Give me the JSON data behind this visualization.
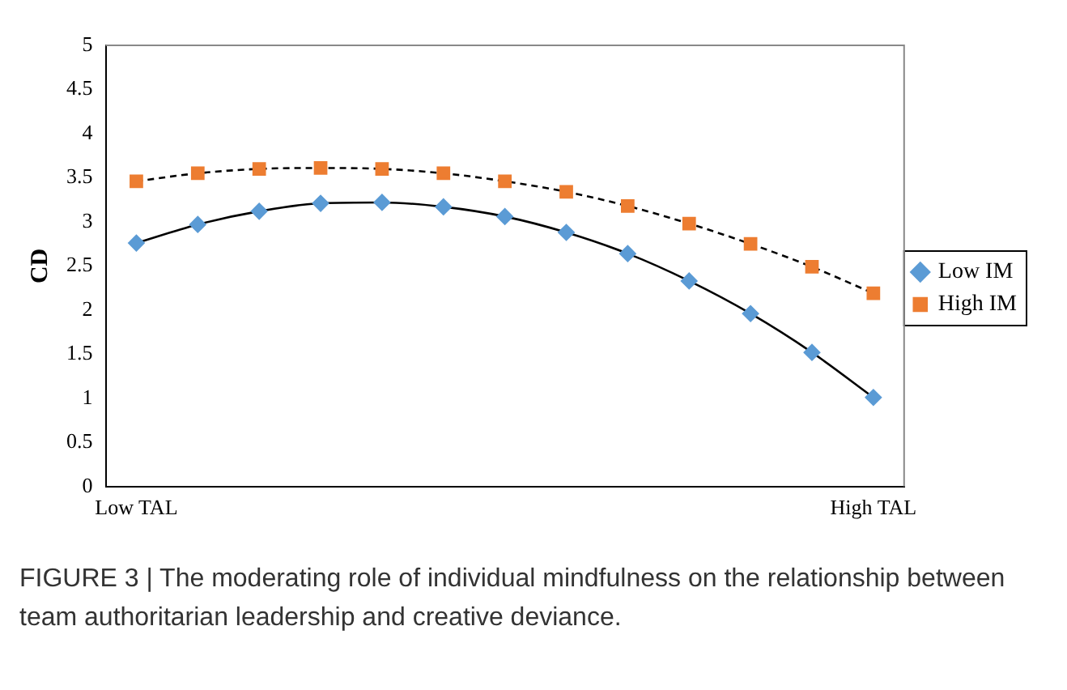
{
  "chart_data": {
    "type": "line",
    "ylabel": "CD",
    "categories": [
      "Low TAL",
      null,
      null,
      null,
      null,
      null,
      null,
      null,
      null,
      null,
      null,
      null,
      "High TAL"
    ],
    "series": [
      {
        "name": "Low IM",
        "color": "#5b9bd5",
        "marker": "diamond",
        "line_style": "solid",
        "values": [
          2.76,
          2.97,
          3.12,
          3.21,
          3.22,
          3.17,
          3.06,
          2.88,
          2.64,
          2.33,
          1.96,
          1.52,
          1.01
        ]
      },
      {
        "name": "High IM",
        "color": "#ed7d31",
        "marker": "square",
        "line_style": "dashed",
        "values": [
          3.46,
          3.55,
          3.6,
          3.61,
          3.6,
          3.55,
          3.46,
          3.34,
          3.18,
          2.98,
          2.75,
          2.49,
          2.19
        ]
      }
    ],
    "ylim": [
      0,
      5
    ],
    "yticks": [
      0,
      0.5,
      1,
      1.5,
      2,
      2.5,
      3,
      3.5,
      4,
      4.5,
      5
    ],
    "grid": false,
    "legend": "right",
    "annotations": [
      "FIGURE 3 | The moderating role of individual mindfulness on the relationship between team authoritarian leadership and creative deviance."
    ]
  }
}
